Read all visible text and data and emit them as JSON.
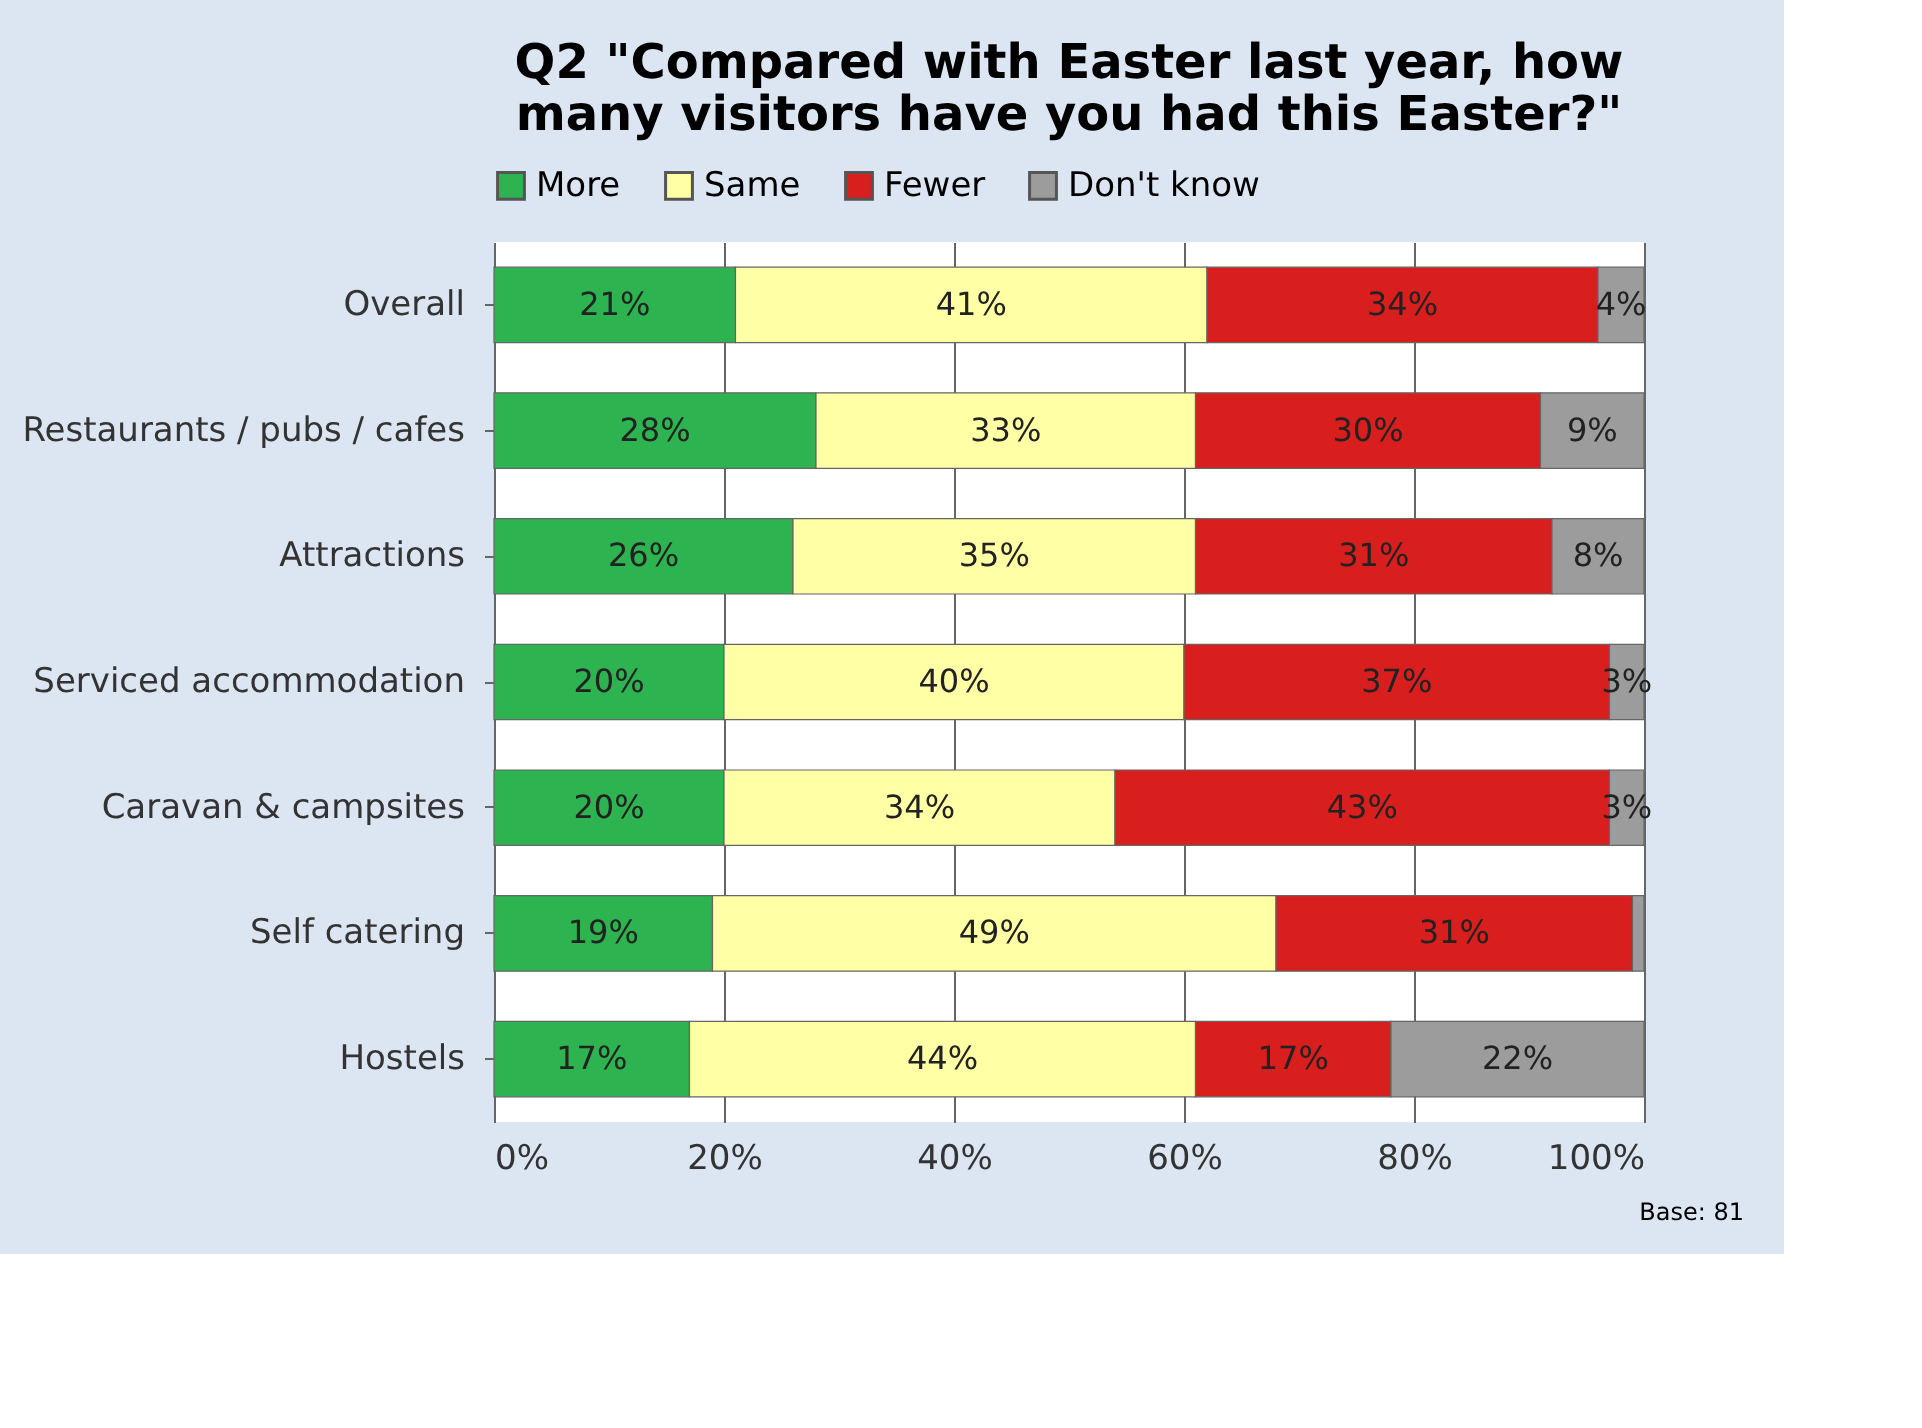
{
  "chart_data": {
    "type": "bar",
    "orientation": "horizontal",
    "stacked": true,
    "title": "Q2 \"Compared with Easter last year, how many visitors have you had this Easter?\"",
    "categories": [
      "Overall",
      "Restaurants / pubs / cafes",
      "Attractions",
      "Serviced accommodation",
      "Caravan & campsites",
      "Self catering",
      "Hostels"
    ],
    "series": [
      {
        "name": "More",
        "color": "#2db34f",
        "values": [
          21,
          28,
          26,
          20,
          20,
          19,
          17
        ],
        "value_labels": [
          "21%",
          "28%",
          "26%",
          "20%",
          "20%",
          "19%",
          "17%"
        ]
      },
      {
        "name": "Same",
        "color": "#ffffa6",
        "values": [
          41,
          33,
          35,
          40,
          34,
          49,
          44
        ],
        "value_labels": [
          "41%",
          "33%",
          "35%",
          "40%",
          "34%",
          "49%",
          "44%"
        ]
      },
      {
        "name": "Fewer",
        "color": "#d91e1e",
        "values": [
          34,
          30,
          31,
          37,
          43,
          31,
          17
        ],
        "value_labels": [
          "34%",
          "30%",
          "31%",
          "37%",
          "43%",
          "31%",
          "17%"
        ]
      },
      {
        "name": "Don't know",
        "color": "#9c9c9c",
        "values": [
          4,
          9,
          8,
          3,
          3,
          1,
          22
        ],
        "value_labels": [
          "4%",
          "9%",
          "8%",
          "3%",
          "3%",
          null,
          "22%"
        ]
      }
    ],
    "xlim": [
      0,
      100
    ],
    "xticks": [
      {
        "value": 0,
        "label": "0%"
      },
      {
        "value": 20,
        "label": "20%"
      },
      {
        "value": 40,
        "label": "40%"
      },
      {
        "value": 60,
        "label": "60%"
      },
      {
        "value": 80,
        "label": "80%"
      },
      {
        "value": 100,
        "label": "100%"
      }
    ],
    "grid": "x",
    "legend": "top",
    "annotations": [
      "Base: 81"
    ]
  }
}
